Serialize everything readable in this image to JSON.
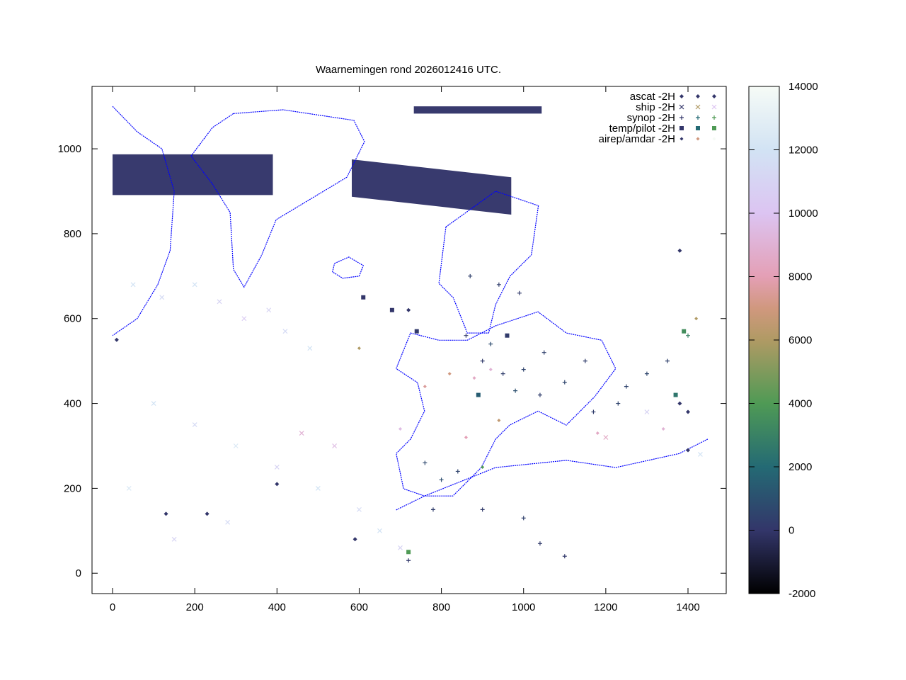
{
  "chart_data": {
    "type": "scatter",
    "title": "Waarnemingen rond 2026012416 UTC.",
    "xlabel": "",
    "ylabel": "",
    "xlim": [
      -50,
      1493
    ],
    "ylim": [
      -48,
      1147
    ],
    "x_ticks": [
      0,
      200,
      400,
      600,
      800,
      1000,
      1200,
      1400
    ],
    "y_ticks": [
      0,
      200,
      400,
      600,
      800,
      1000
    ],
    "grid": false,
    "legend_position": "top-right",
    "colorbar": {
      "range": [
        -2000,
        14000
      ],
      "ticks": [
        -2000,
        0,
        2000,
        4000,
        6000,
        8000,
        10000,
        12000,
        14000
      ],
      "stops": [
        {
          "value": -2000,
          "color": "#000000"
        },
        {
          "value": 0,
          "color": "#33366a"
        },
        {
          "value": 2000,
          "color": "#246a74"
        },
        {
          "value": 4000,
          "color": "#4f9a55"
        },
        {
          "value": 6000,
          "color": "#b09a64"
        },
        {
          "value": 7000,
          "color": "#d0987e"
        },
        {
          "value": 8000,
          "color": "#e49fb5"
        },
        {
          "value": 10000,
          "color": "#dcc4f2"
        },
        {
          "value": 12000,
          "color": "#d2e3f4"
        },
        {
          "value": 14000,
          "color": "#f6fbf6"
        }
      ]
    },
    "map_color": "#0000ff",
    "map_outlines": [
      [
        [
          294,
          1083
        ],
        [
          415,
          1092
        ],
        [
          587,
          1067
        ],
        [
          613,
          1017
        ],
        [
          570,
          933
        ],
        [
          484,
          883
        ],
        [
          398,
          833
        ],
        [
          363,
          750
        ],
        [
          320,
          674
        ],
        [
          294,
          716
        ],
        [
          286,
          850
        ],
        [
          243,
          917
        ],
        [
          191,
          983
        ],
        [
          243,
          1050
        ],
        [
          294,
          1083
        ]
      ],
      [
        [
          540,
          730
        ],
        [
          575,
          745
        ],
        [
          610,
          725
        ],
        [
          600,
          700
        ],
        [
          560,
          695
        ],
        [
          535,
          710
        ],
        [
          540,
          730
        ]
      ],
      [
        [
          811,
          816
        ],
        [
          932,
          900
        ],
        [
          1036,
          866
        ],
        [
          1019,
          750
        ],
        [
          967,
          700
        ],
        [
          932,
          633
        ],
        [
          915,
          566
        ],
        [
          863,
          566
        ],
        [
          829,
          649
        ],
        [
          794,
          683
        ],
        [
          811,
          816
        ]
      ],
      [
        [
          690,
          482
        ],
        [
          725,
          566
        ],
        [
          794,
          549
        ],
        [
          863,
          549
        ],
        [
          932,
          583
        ],
        [
          1035,
          616
        ],
        [
          1104,
          566
        ],
        [
          1190,
          549
        ],
        [
          1224,
          482
        ],
        [
          1173,
          416
        ],
        [
          1104,
          349
        ],
        [
          1035,
          382
        ],
        [
          966,
          349
        ],
        [
          932,
          316
        ],
        [
          897,
          249
        ],
        [
          828,
          182
        ],
        [
          759,
          182
        ],
        [
          708,
          199
        ],
        [
          690,
          282
        ],
        [
          725,
          316
        ],
        [
          759,
          382
        ],
        [
          742,
          449
        ],
        [
          690,
          482
        ]
      ],
      [
        [
          690,
          149
        ],
        [
          759,
          182
        ],
        [
          932,
          249
        ],
        [
          1104,
          266
        ],
        [
          1224,
          249
        ],
        [
          1379,
          282
        ],
        [
          1448,
          316
        ]
      ],
      [
        [
          0,
          1100
        ],
        [
          60,
          1040
        ],
        [
          120,
          1000
        ],
        [
          150,
          900
        ],
        [
          140,
          760
        ],
        [
          110,
          680
        ],
        [
          60,
          600
        ],
        [
          0,
          560
        ]
      ]
    ],
    "ascat_swaths": [
      [
        [
          0,
          987
        ],
        [
          390,
          987
        ],
        [
          390,
          891
        ],
        [
          0,
          891
        ]
      ],
      [
        [
          582,
          975
        ],
        [
          970,
          933
        ],
        [
          970,
          845
        ],
        [
          582,
          887
        ]
      ],
      [
        [
          733,
          1100
        ],
        [
          1044,
          1100
        ],
        [
          1044,
          1083
        ],
        [
          733,
          1083
        ]
      ]
    ],
    "series": [
      {
        "name": "ascat -2H",
        "marker": "diamond",
        "legend_colors": [
          "#33366a",
          "#33366a",
          "#33366a"
        ],
        "points": [
          [
            10,
            550,
            0
          ],
          [
            400,
            210,
            0
          ],
          [
            230,
            140,
            0
          ],
          [
            590,
            80,
            0
          ],
          [
            720,
            620,
            0
          ],
          [
            1380,
            400,
            0
          ],
          [
            1400,
            290,
            0
          ],
          [
            1400,
            380,
            0
          ],
          [
            1380,
            760,
            0
          ],
          [
            130,
            140,
            0
          ]
        ]
      },
      {
        "name": "ship -2H",
        "marker": "cross",
        "legend_colors": [
          "#33366a",
          "#b09a64",
          "#dcc4f2"
        ],
        "points": [
          [
            50,
            680,
            12000
          ],
          [
            120,
            650,
            11500
          ],
          [
            200,
            680,
            12000
          ],
          [
            260,
            640,
            11000
          ],
          [
            320,
            600,
            10500
          ],
          [
            380,
            620,
            11000
          ],
          [
            420,
            570,
            11500
          ],
          [
            480,
            530,
            12000
          ],
          [
            100,
            400,
            12000
          ],
          [
            200,
            350,
            11500
          ],
          [
            300,
            300,
            12500
          ],
          [
            400,
            250,
            11000
          ],
          [
            500,
            200,
            12000
          ],
          [
            600,
            150,
            11500
          ],
          [
            650,
            100,
            12000
          ],
          [
            700,
            60,
            11000
          ],
          [
            40,
            200,
            12500
          ],
          [
            150,
            80,
            11000
          ],
          [
            280,
            120,
            11500
          ],
          [
            460,
            330,
            9000
          ],
          [
            540,
            300,
            9500
          ],
          [
            1200,
            320,
            8500
          ],
          [
            1300,
            380,
            11000
          ],
          [
            1430,
            280,
            12000
          ]
        ]
      },
      {
        "name": "synop -2H",
        "marker": "plus",
        "legend_colors": [
          "#33366a",
          "#246a74",
          "#4f9a55"
        ],
        "points": [
          [
            900,
            500,
            200
          ],
          [
            950,
            470,
            300
          ],
          [
            1000,
            480,
            500
          ],
          [
            1050,
            520,
            400
          ],
          [
            1100,
            450,
            600
          ],
          [
            1150,
            500,
            300
          ],
          [
            860,
            560,
            200
          ],
          [
            920,
            540,
            800
          ],
          [
            980,
            430,
            1000
          ],
          [
            1040,
            420,
            300
          ],
          [
            760,
            260,
            700
          ],
          [
            800,
            220,
            900
          ],
          [
            840,
            240,
            500
          ],
          [
            780,
            150,
            300
          ],
          [
            900,
            150,
            200
          ],
          [
            1000,
            130,
            400
          ],
          [
            1100,
            40,
            100
          ],
          [
            1040,
            70,
            200
          ],
          [
            1250,
            440,
            500
          ],
          [
            1300,
            470,
            600
          ],
          [
            1350,
            500,
            400
          ],
          [
            1400,
            560,
            3000
          ],
          [
            870,
            700,
            400
          ],
          [
            940,
            680,
            300
          ],
          [
            990,
            660,
            200
          ],
          [
            720,
            30,
            100
          ],
          [
            1230,
            400,
            500
          ],
          [
            1170,
            380,
            300
          ]
        ]
      },
      {
        "name": "temp/pilot -2H",
        "marker": "square",
        "legend_colors": [
          "#33366a",
          "#246a74",
          "#4f9a55"
        ],
        "points": [
          [
            610,
            650,
            0
          ],
          [
            680,
            620,
            0
          ],
          [
            740,
            570,
            100
          ],
          [
            960,
            560,
            200
          ],
          [
            890,
            420,
            1500
          ],
          [
            1370,
            420,
            2500
          ],
          [
            1390,
            570,
            3500
          ],
          [
            720,
            50,
            4000
          ]
        ]
      },
      {
        "name": "airep/amdar -2H",
        "marker": "diamond-small",
        "legend_colors": [
          "#33366a",
          "#d0987e",
          "#f6fbf6"
        ],
        "points": [
          [
            820,
            470,
            7000
          ],
          [
            880,
            460,
            8500
          ],
          [
            920,
            480,
            9000
          ],
          [
            760,
            440,
            7500
          ],
          [
            700,
            340,
            9500
          ],
          [
            860,
            320,
            8000
          ],
          [
            940,
            360,
            6500
          ],
          [
            1180,
            330,
            8500
          ],
          [
            1340,
            340,
            9000
          ],
          [
            600,
            530,
            6000
          ],
          [
            900,
            250,
            4000
          ],
          [
            1420,
            600,
            6000
          ]
        ]
      }
    ]
  }
}
